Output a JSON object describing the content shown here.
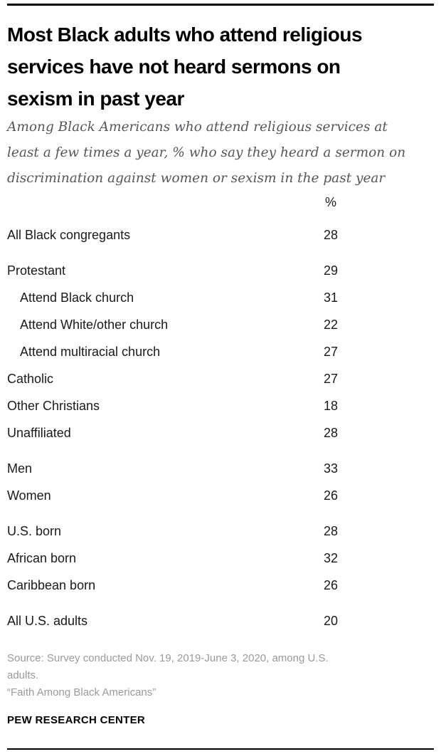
{
  "header": {
    "title_lines": [
      "Most Black adults who attend religious",
      "services have not heard sermons on",
      "sexism in past year"
    ],
    "subtitle_lines": [
      "Among Black Americans who attend religious services at",
      "least a few times a year, % who say they heard a sermon on",
      "discrimination against women or sexism in the past year"
    ]
  },
  "table": {
    "value_header": "%",
    "groups": [
      {
        "rows": [
          {
            "label": "All Black congregants",
            "value": "28",
            "indent": false
          }
        ]
      },
      {
        "rows": [
          {
            "label": "Protestant",
            "value": "29",
            "indent": false
          },
          {
            "label": "Attend Black church",
            "value": "31",
            "indent": true
          },
          {
            "label": "Attend White/other church",
            "value": "22",
            "indent": true
          },
          {
            "label": "Attend multiracial church",
            "value": "27",
            "indent": true
          },
          {
            "label": "Catholic",
            "value": "27",
            "indent": false
          },
          {
            "label": "Other Christians",
            "value": "18",
            "indent": false
          },
          {
            "label": "Unaffiliated",
            "value": "28",
            "indent": false
          }
        ]
      },
      {
        "rows": [
          {
            "label": "Men",
            "value": "33",
            "indent": false
          },
          {
            "label": "Women",
            "value": "26",
            "indent": false
          }
        ]
      },
      {
        "rows": [
          {
            "label": "U.S. born",
            "value": "28",
            "indent": false
          },
          {
            "label": "African born",
            "value": "32",
            "indent": false
          },
          {
            "label": "Caribbean born",
            "value": "26",
            "indent": false
          }
        ]
      },
      {
        "rows": [
          {
            "label": "All U.S. adults",
            "value": "20",
            "indent": false
          }
        ]
      }
    ]
  },
  "footer": {
    "source_lines": [
      "Source: Survey conducted Nov. 19, 2019-June 3, 2020, among U.S.",
      "adults."
    ],
    "report_title": "“Faith Among Black Americans”",
    "brand": "PEW RESEARCH CENTER"
  },
  "colors": {
    "title": "#000000",
    "subtitle": "#55565a",
    "table_text": "#1a1a1a",
    "notes": "#9a9a9a",
    "rule": "#000000"
  },
  "chart_data": {
    "type": "table",
    "title": "Most Black adults who attend religious services have not heard sermons on sexism in past year",
    "subtitle": "Among Black Americans who attend religious services at least a few times a year, % who say they heard a sermon on discrimination against women or sexism in the past year",
    "value_label": "%",
    "categories": [
      "All Black congregants",
      "Protestant",
      "Attend Black church",
      "Attend White/other church",
      "Attend multiracial church",
      "Catholic",
      "Other Christians",
      "Unaffiliated",
      "Men",
      "Women",
      "U.S. born",
      "African born",
      "Caribbean born",
      "All U.S. adults"
    ],
    "values": [
      28,
      29,
      31,
      22,
      27,
      27,
      18,
      28,
      33,
      26,
      28,
      32,
      26,
      20
    ],
    "indented_categories": [
      "Attend Black church",
      "Attend White/other church",
      "Attend multiracial church"
    ],
    "source": "Source: Survey conducted Nov. 19, 2019-June 3, 2020, among U.S. adults. “Faith Among Black Americans”",
    "organization": "PEW RESEARCH CENTER"
  }
}
